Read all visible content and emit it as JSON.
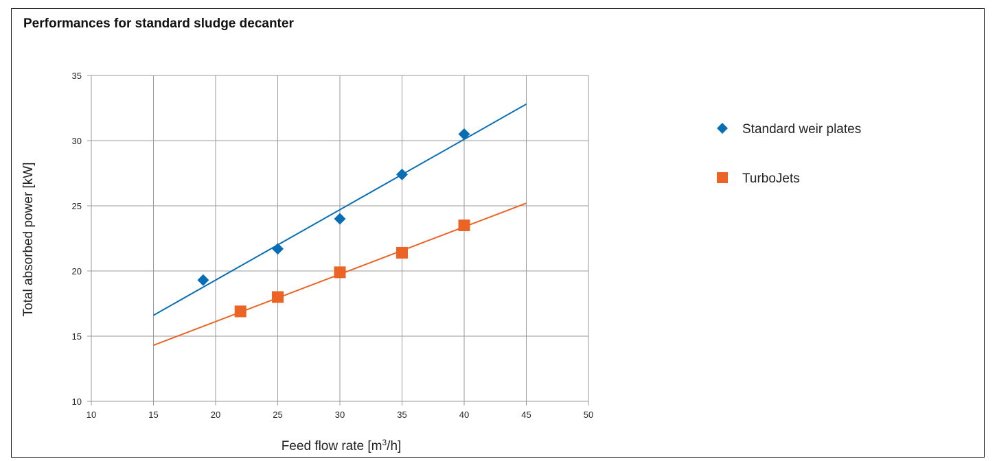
{
  "chart_data": {
    "type": "scatter",
    "title": "Performances for standard sludge decanter",
    "xlabel_main": "Feed flow rate [m",
    "xlabel_sup": "3",
    "xlabel_end": "/h]",
    "ylabel": "Total absorbed power [kW]",
    "xlim": [
      10,
      50
    ],
    "ylim": [
      10,
      35
    ],
    "xticks": [
      10,
      15,
      20,
      25,
      30,
      35,
      40,
      45,
      50
    ],
    "yticks": [
      10,
      15,
      20,
      25,
      30,
      35
    ],
    "grid": true,
    "legend_position": "right",
    "series": [
      {
        "name": "Standard weir plates",
        "marker": "diamond",
        "color": "#0a6eb4",
        "points": [
          [
            19,
            19.3
          ],
          [
            25,
            21.7
          ],
          [
            30,
            24.0
          ],
          [
            35,
            27.4
          ],
          [
            40,
            30.5
          ]
        ],
        "trendline": [
          [
            15,
            16.6
          ],
          [
            45,
            32.8
          ]
        ]
      },
      {
        "name": "TurboJets",
        "marker": "square",
        "color": "#ec6425",
        "points": [
          [
            22,
            16.9
          ],
          [
            25,
            18.0
          ],
          [
            30,
            19.9
          ],
          [
            35,
            21.4
          ],
          [
            40,
            23.5
          ]
        ],
        "trendline": [
          [
            15,
            14.3
          ],
          [
            45,
            25.2
          ]
        ]
      }
    ]
  }
}
